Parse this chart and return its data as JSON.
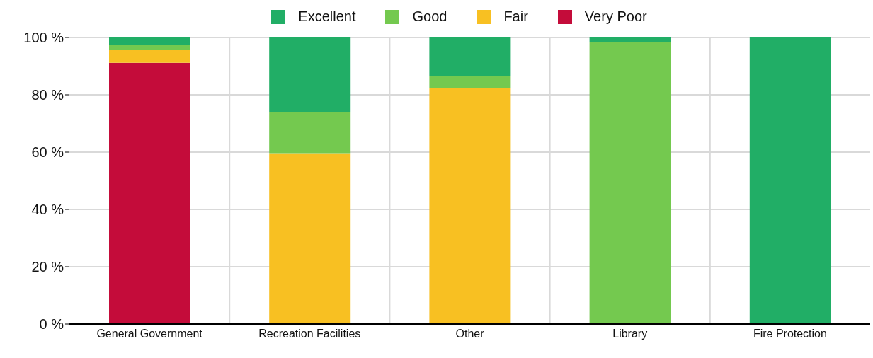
{
  "chart_data": {
    "type": "bar",
    "stacked": true,
    "categories": [
      "General Government",
      "Recreation Facilities",
      "Other",
      "Library",
      "Fire Protection"
    ],
    "series": [
      {
        "name": "Very Poor",
        "color": "#c40c3a",
        "values": [
          91.2,
          0,
          0,
          0,
          0
        ]
      },
      {
        "name": "Fair",
        "color": "#f8c022",
        "values": [
          4.5,
          59.6,
          82.4,
          0,
          0
        ]
      },
      {
        "name": "Good",
        "color": "#74c94f",
        "values": [
          1.8,
          14.4,
          4.0,
          98.5,
          0
        ]
      },
      {
        "name": "Excellent",
        "color": "#21ae66",
        "values": [
          2.5,
          26.0,
          13.6,
          1.5,
          100
        ]
      }
    ],
    "ylim": [
      0,
      100
    ],
    "yticks": [
      {
        "value": 0,
        "label": "0 %"
      },
      {
        "value": 20,
        "label": "20 %"
      },
      {
        "value": 40,
        "label": "40 %"
      },
      {
        "value": 60,
        "label": "60 %"
      },
      {
        "value": 80,
        "label": "80 %"
      },
      {
        "value": 100,
        "label": "100 %"
      }
    ],
    "grid": true,
    "legend": "top"
  }
}
